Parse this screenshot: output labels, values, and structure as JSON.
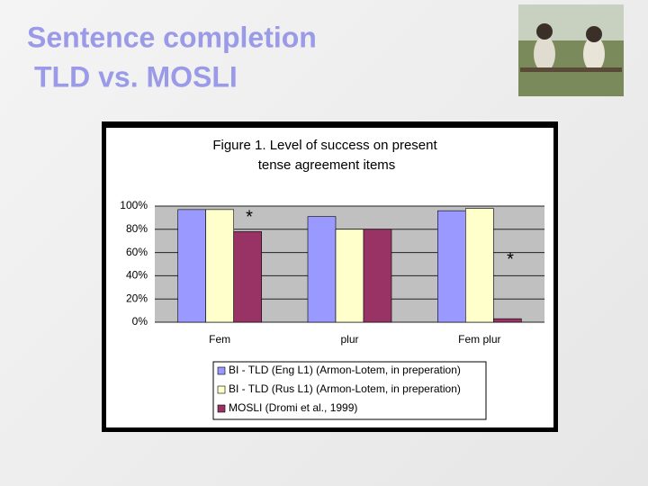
{
  "slide_title": [
    "Sentence completion",
    "TLD vs. MOSLI"
  ],
  "chart_data": {
    "type": "bar",
    "title": [
      "Figure 1. Level of success on present",
      "tense agreement items"
    ],
    "categories": [
      "Fem",
      "plur",
      "Fem plur"
    ],
    "series": [
      {
        "name": "BI - TLD (Eng L1) (Armon-Lotem, in preperation)",
        "color": "#9999ff",
        "values": [
          97,
          91,
          96
        ]
      },
      {
        "name": "BI - TLD (Rus L1) (Armon-Lotem, in preperation)",
        "color": "#ffffcc",
        "values": [
          97,
          80,
          98
        ]
      },
      {
        "name": "MOSLI (Dromi et al., 1999)",
        "color": "#993366",
        "values": [
          78,
          80,
          3
        ]
      }
    ],
    "ylim": [
      0,
      100
    ],
    "yticks": [
      {
        "value": 0,
        "label": "0%"
      },
      {
        "value": 20,
        "label": "20%"
      },
      {
        "value": 40,
        "label": "40%"
      },
      {
        "value": 60,
        "label": "60%"
      },
      {
        "value": 80,
        "label": "80%"
      },
      {
        "value": 100,
        "label": "100%"
      }
    ],
    "grid": true,
    "annotations": [
      "*",
      "*"
    ]
  }
}
